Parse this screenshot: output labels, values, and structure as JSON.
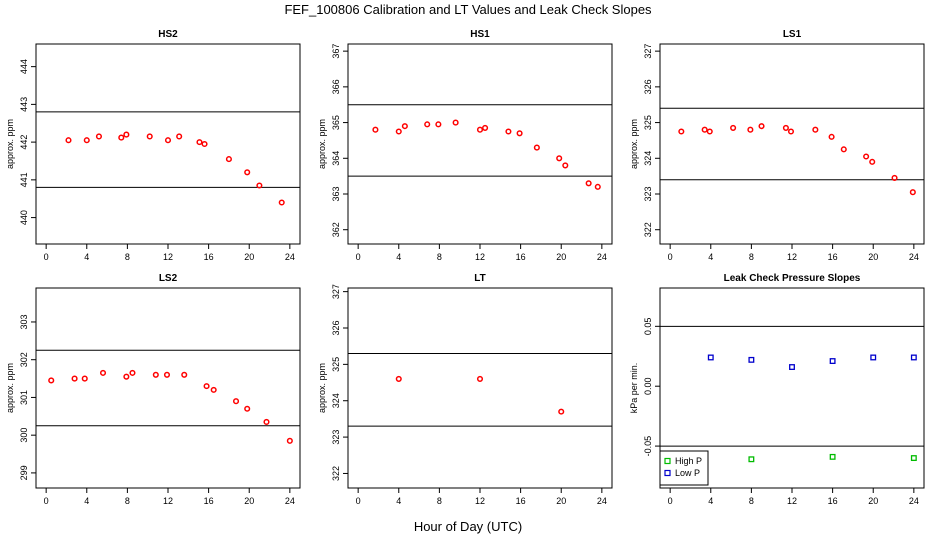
{
  "title": "FEF_100806  Calibration and LT Values and Leak Check Slopes",
  "xlabel": "Hour of Day (UTC)",
  "colors": {
    "calibration": "#ff0000",
    "high_p": "#00bb00",
    "low_p": "#0000cc",
    "line": "#000000"
  },
  "chart_data": [
    {
      "type": "scatter",
      "title": "HS2",
      "ylabel": "approx. ppm",
      "xlim": [
        -1,
        25
      ],
      "ylim": [
        439.3,
        444.6
      ],
      "xticks": [
        0,
        4,
        8,
        12,
        16,
        20,
        24
      ],
      "yticks": [
        440,
        441,
        442,
        443,
        444
      ],
      "hlines": [
        442.8,
        440.8
      ],
      "series": [
        {
          "color": "#ff0000",
          "x": [
            2.2,
            4.0,
            5.2,
            7.4,
            7.9,
            10.2,
            12.0,
            13.1,
            15.1,
            15.6,
            18.0,
            19.8,
            21.0,
            23.2
          ],
          "y": [
            442.05,
            442.05,
            442.15,
            442.12,
            442.2,
            442.15,
            442.05,
            442.15,
            442.0,
            441.95,
            441.55,
            441.2,
            440.85,
            440.4
          ]
        }
      ]
    },
    {
      "type": "scatter",
      "title": "HS1",
      "ylabel": "approx. ppm",
      "xlim": [
        -1,
        25
      ],
      "ylim": [
        361.6,
        367.2
      ],
      "xticks": [
        0,
        4,
        8,
        12,
        16,
        20,
        24
      ],
      "yticks": [
        362,
        363,
        364,
        365,
        366,
        367
      ],
      "hlines": [
        365.5,
        363.5
      ],
      "series": [
        {
          "color": "#ff0000",
          "x": [
            1.7,
            4.0,
            4.6,
            6.8,
            7.9,
            9.6,
            12.0,
            12.5,
            14.8,
            15.9,
            17.6,
            19.8,
            20.4,
            22.7,
            23.6
          ],
          "y": [
            364.8,
            364.75,
            364.9,
            364.95,
            364.95,
            365.0,
            364.8,
            364.85,
            364.75,
            364.7,
            364.3,
            364.0,
            363.8,
            363.3,
            363.2
          ]
        }
      ]
    },
    {
      "type": "scatter",
      "title": "LS1",
      "ylabel": "approx. ppm",
      "xlim": [
        -1,
        25
      ],
      "ylim": [
        321.6,
        327.2
      ],
      "xticks": [
        0,
        4,
        8,
        12,
        16,
        20,
        24
      ],
      "yticks": [
        322,
        323,
        324,
        325,
        326,
        327
      ],
      "hlines": [
        325.4,
        323.4
      ],
      "series": [
        {
          "color": "#ff0000",
          "x": [
            1.1,
            3.4,
            3.9,
            6.2,
            7.9,
            9.0,
            11.4,
            11.9,
            14.3,
            15.9,
            17.1,
            19.3,
            19.9,
            22.1,
            23.9
          ],
          "y": [
            324.75,
            324.8,
            324.75,
            324.85,
            324.8,
            324.9,
            324.85,
            324.75,
            324.8,
            324.6,
            324.25,
            324.05,
            323.9,
            323.45,
            323.05
          ]
        }
      ]
    },
    {
      "type": "scatter",
      "title": "LS2",
      "ylabel": "approx. ppm",
      "xlim": [
        -1,
        25
      ],
      "ylim": [
        298.6,
        303.9
      ],
      "xticks": [
        0,
        4,
        8,
        12,
        16,
        20,
        24
      ],
      "yticks": [
        299,
        300,
        301,
        302,
        303
      ],
      "hlines": [
        302.25,
        300.25
      ],
      "series": [
        {
          "color": "#ff0000",
          "x": [
            0.5,
            2.8,
            3.8,
            5.6,
            7.9,
            8.5,
            10.8,
            11.9,
            13.6,
            15.8,
            16.5,
            18.7,
            19.8,
            21.7,
            24.0
          ],
          "y": [
            301.45,
            301.5,
            301.5,
            301.65,
            301.55,
            301.65,
            301.6,
            301.6,
            301.6,
            301.3,
            301.2,
            300.9,
            300.7,
            300.35,
            299.85
          ]
        }
      ]
    },
    {
      "type": "scatter",
      "title": "LT",
      "ylabel": "approx. ppm",
      "xlim": [
        -1,
        25
      ],
      "ylim": [
        321.6,
        327.1
      ],
      "xticks": [
        0,
        4,
        8,
        12,
        16,
        20,
        24
      ],
      "yticks": [
        322,
        323,
        324,
        325,
        326,
        327
      ],
      "hlines": [
        325.3,
        323.3
      ],
      "series": [
        {
          "color": "#ff0000",
          "x": [
            4.0,
            12.0,
            20.0
          ],
          "y": [
            324.6,
            324.6,
            323.7
          ]
        }
      ]
    },
    {
      "type": "scatter",
      "title": "Leak Check Pressure Slopes",
      "ylabel": "kPa per min.",
      "xlim": [
        -1,
        25
      ],
      "ylim": [
        -0.085,
        0.082
      ],
      "xticks": [
        0,
        4,
        8,
        12,
        16,
        20,
        24
      ],
      "yticks": [
        -0.05,
        0.0,
        0.05
      ],
      "ytick_labels": [
        "-0.05",
        "0.00",
        "0.05"
      ],
      "hlines": [
        0.05,
        -0.05
      ],
      "legend": {
        "position": "bottom-left"
      },
      "series": [
        {
          "name": "High P",
          "color": "#00bb00",
          "x": [
            8,
            16,
            24
          ],
          "y": [
            -0.061,
            -0.059,
            -0.06
          ]
        },
        {
          "name": "Low P",
          "color": "#0000cc",
          "x": [
            4,
            8,
            12,
            16,
            20,
            24
          ],
          "y": [
            0.024,
            0.022,
            0.016,
            0.021,
            0.024,
            0.024
          ]
        }
      ]
    }
  ]
}
